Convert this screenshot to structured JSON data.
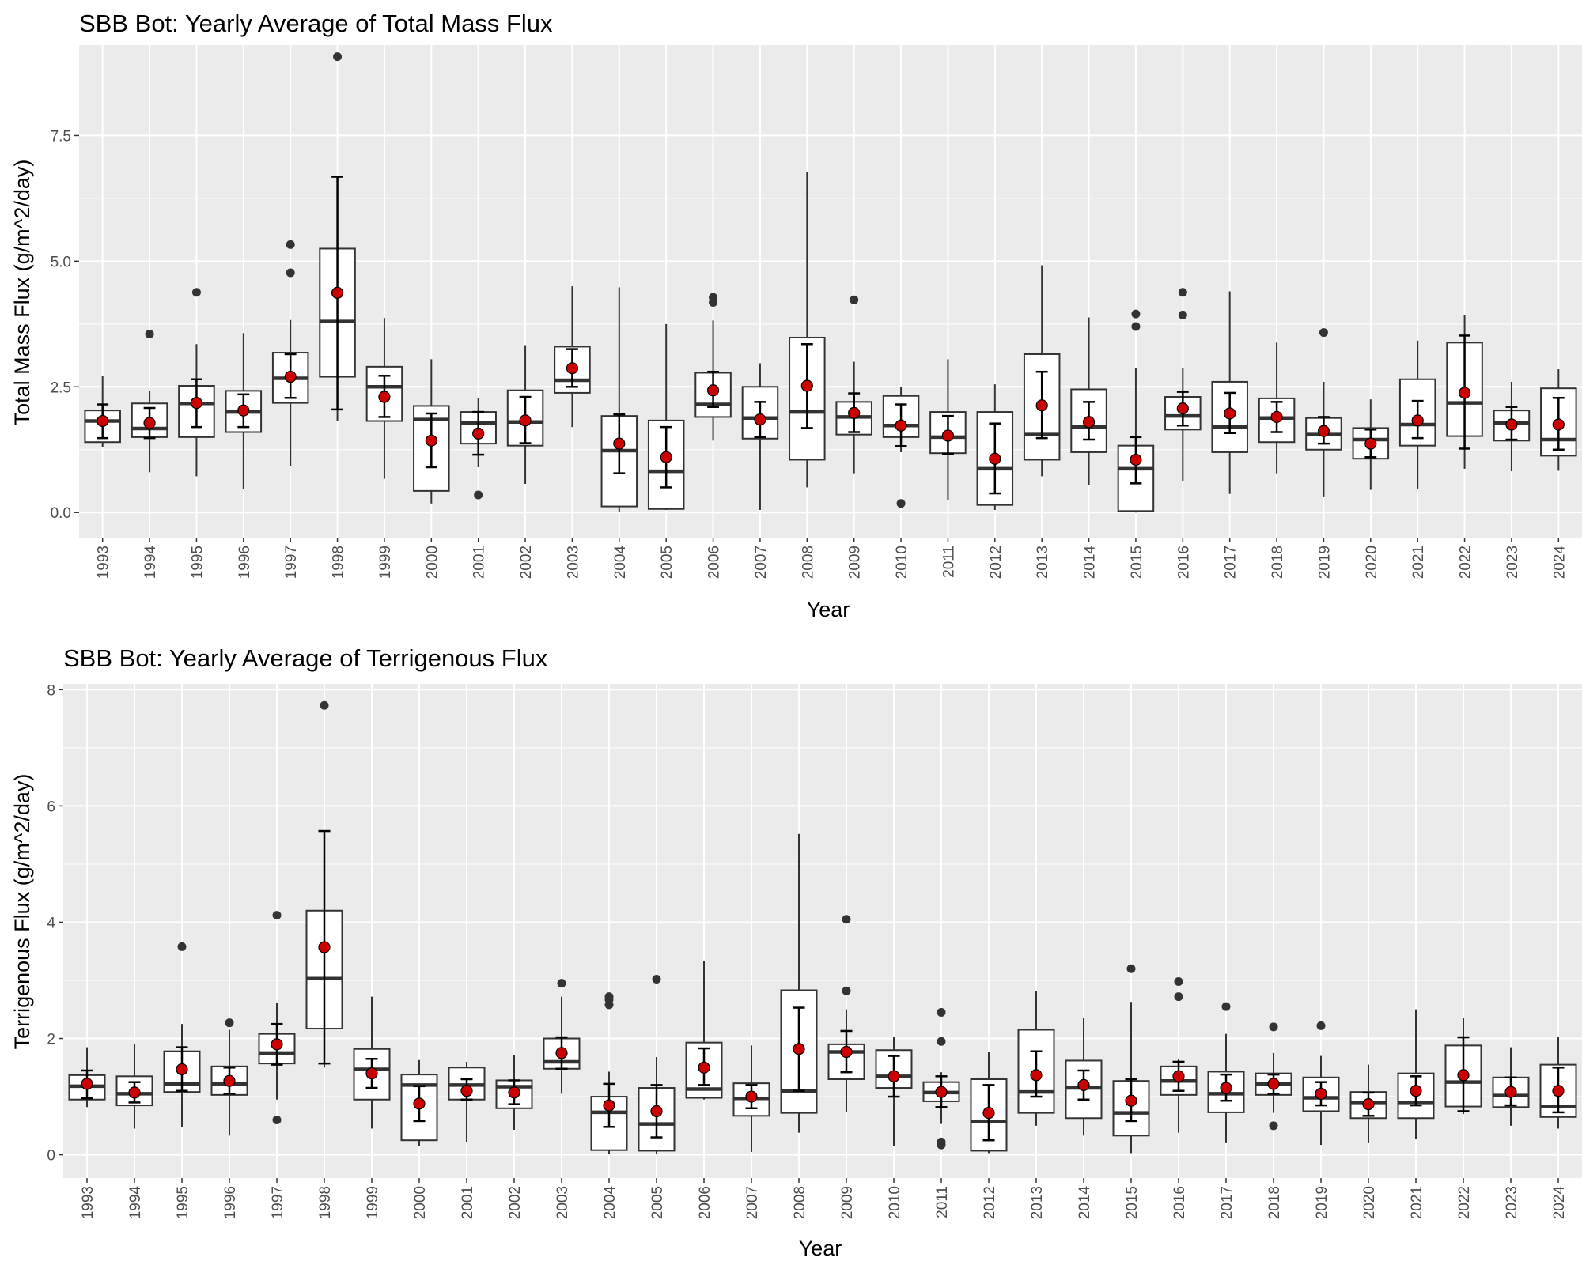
{
  "colors": {
    "panel_background": "#ebebeb",
    "grid_major": "#ffffff",
    "box_stroke": "#333333",
    "outlier": "#333333",
    "mean_point": "#cc0000",
    "errorbar": "#000000"
  },
  "chart_data": [
    {
      "type": "box",
      "title": "SBB Bot: Yearly Average of Total Mass Flux",
      "xlabel": "Year",
      "ylabel": "Total Mass Flux (g/m^2/day)",
      "ylim": [
        -0.5,
        9.3
      ],
      "yticks": [
        0.0,
        2.5,
        5.0,
        7.5
      ],
      "ytick_labels": [
        "0.0",
        "2.5",
        "5.0",
        "7.5"
      ],
      "grid": true,
      "categories": [
        "1993",
        "1994",
        "1995",
        "1996",
        "1997",
        "1998",
        "1999",
        "2000",
        "2001",
        "2002",
        "2003",
        "2004",
        "2005",
        "2006",
        "2007",
        "2008",
        "2009",
        "2010",
        "2011",
        "2012",
        "2013",
        "2014",
        "2015",
        "2016",
        "2017",
        "2018",
        "2019",
        "2020",
        "2021",
        "2022",
        "2023",
        "2024"
      ],
      "boxes": [
        {
          "q1": 1.4,
          "median": 1.82,
          "q3": 2.03,
          "wlo": 1.3,
          "whi": 2.72,
          "outliers": []
        },
        {
          "q1": 1.5,
          "median": 1.67,
          "q3": 2.17,
          "wlo": 0.8,
          "whi": 2.42,
          "outliers": [
            3.55
          ]
        },
        {
          "q1": 1.5,
          "median": 2.17,
          "q3": 2.52,
          "wlo": 0.72,
          "whi": 3.35,
          "outliers": [
            4.38
          ]
        },
        {
          "q1": 1.6,
          "median": 2.0,
          "q3": 2.42,
          "wlo": 0.47,
          "whi": 3.57,
          "outliers": []
        },
        {
          "q1": 2.18,
          "median": 2.67,
          "q3": 3.18,
          "wlo": 0.93,
          "whi": 3.83,
          "outliers": [
            4.77,
            5.33
          ]
        },
        {
          "q1": 2.7,
          "median": 3.8,
          "q3": 5.25,
          "wlo": 1.82,
          "whi": 6.68,
          "outliers": [
            9.07
          ]
        },
        {
          "q1": 1.82,
          "median": 2.5,
          "q3": 2.9,
          "wlo": 0.67,
          "whi": 3.87,
          "outliers": []
        },
        {
          "q1": 0.43,
          "median": 1.85,
          "q3": 2.12,
          "wlo": 0.18,
          "whi": 3.05,
          "outliers": []
        },
        {
          "q1": 1.37,
          "median": 1.78,
          "q3": 2.0,
          "wlo": 0.9,
          "whi": 2.28,
          "outliers": [
            0.35
          ]
        },
        {
          "q1": 1.33,
          "median": 1.8,
          "q3": 2.43,
          "wlo": 0.57,
          "whi": 3.33,
          "outliers": []
        },
        {
          "q1": 2.38,
          "median": 2.63,
          "q3": 3.3,
          "wlo": 1.7,
          "whi": 4.5,
          "outliers": []
        },
        {
          "q1": 0.12,
          "median": 1.23,
          "q3": 1.92,
          "wlo": 0.02,
          "whi": 4.48,
          "outliers": []
        },
        {
          "q1": 0.07,
          "median": 0.82,
          "q3": 1.83,
          "wlo": 0.05,
          "whi": 3.75,
          "outliers": []
        },
        {
          "q1": 1.9,
          "median": 2.15,
          "q3": 2.78,
          "wlo": 1.43,
          "whi": 3.82,
          "outliers": [
            4.18,
            4.28
          ]
        },
        {
          "q1": 1.47,
          "median": 1.88,
          "q3": 2.5,
          "wlo": 0.05,
          "whi": 2.97,
          "outliers": []
        },
        {
          "q1": 1.05,
          "median": 2.0,
          "q3": 3.48,
          "wlo": 0.5,
          "whi": 6.78,
          "outliers": []
        },
        {
          "q1": 1.55,
          "median": 1.9,
          "q3": 2.2,
          "wlo": 0.78,
          "whi": 3.0,
          "outliers": [
            4.23
          ]
        },
        {
          "q1": 1.5,
          "median": 1.73,
          "q3": 2.32,
          "wlo": 1.2,
          "whi": 2.5,
          "outliers": [
            0.18
          ]
        },
        {
          "q1": 1.18,
          "median": 1.5,
          "q3": 2.0,
          "wlo": 0.25,
          "whi": 3.05,
          "outliers": []
        },
        {
          "q1": 0.15,
          "median": 0.87,
          "q3": 2.0,
          "wlo": 0.05,
          "whi": 2.55,
          "outliers": []
        },
        {
          "q1": 1.05,
          "median": 1.55,
          "q3": 3.15,
          "wlo": 0.72,
          "whi": 4.92,
          "outliers": []
        },
        {
          "q1": 1.2,
          "median": 1.7,
          "q3": 2.45,
          "wlo": 0.55,
          "whi": 3.88,
          "outliers": []
        },
        {
          "q1": 0.03,
          "median": 0.87,
          "q3": 1.33,
          "wlo": 0.0,
          "whi": 2.88,
          "outliers": [
            3.7,
            3.95
          ]
        },
        {
          "q1": 1.65,
          "median": 1.92,
          "q3": 2.3,
          "wlo": 0.63,
          "whi": 2.88,
          "outliers": [
            3.93,
            4.38
          ]
        },
        {
          "q1": 1.2,
          "median": 1.7,
          "q3": 2.6,
          "wlo": 0.37,
          "whi": 4.4,
          "outliers": []
        },
        {
          "q1": 1.4,
          "median": 1.88,
          "q3": 2.27,
          "wlo": 0.78,
          "whi": 3.38,
          "outliers": []
        },
        {
          "q1": 1.25,
          "median": 1.55,
          "q3": 1.88,
          "wlo": 0.32,
          "whi": 2.6,
          "outliers": [
            3.58
          ]
        },
        {
          "q1": 1.07,
          "median": 1.45,
          "q3": 1.68,
          "wlo": 0.45,
          "whi": 2.25,
          "outliers": []
        },
        {
          "q1": 1.33,
          "median": 1.75,
          "q3": 2.65,
          "wlo": 0.47,
          "whi": 3.42,
          "outliers": []
        },
        {
          "q1": 1.52,
          "median": 2.18,
          "q3": 3.38,
          "wlo": 0.87,
          "whi": 3.92,
          "outliers": []
        },
        {
          "q1": 1.43,
          "median": 1.78,
          "q3": 2.03,
          "wlo": 0.82,
          "whi": 2.6,
          "outliers": []
        },
        {
          "q1": 1.13,
          "median": 1.45,
          "q3": 2.47,
          "wlo": 0.83,
          "whi": 2.85,
          "outliers": []
        }
      ],
      "means": [
        1.82,
        1.78,
        2.18,
        2.03,
        2.7,
        4.37,
        2.3,
        1.43,
        1.57,
        1.83,
        2.87,
        1.37,
        1.1,
        2.43,
        1.85,
        2.52,
        1.98,
        1.73,
        1.53,
        1.07,
        2.13,
        1.8,
        1.05,
        2.07,
        1.97,
        1.9,
        1.62,
        1.37,
        1.83,
        2.38,
        1.75,
        1.75
      ],
      "errorbars": [
        [
          1.48,
          2.15
        ],
        [
          1.48,
          2.08
        ],
        [
          1.7,
          2.65
        ],
        [
          1.7,
          2.35
        ],
        [
          2.28,
          3.15
        ],
        [
          2.05,
          6.68
        ],
        [
          1.9,
          2.72
        ],
        [
          0.9,
          1.97
        ],
        [
          1.15,
          2.0
        ],
        [
          1.38,
          2.3
        ],
        [
          2.5,
          3.25
        ],
        [
          0.78,
          1.95
        ],
        [
          0.5,
          1.7
        ],
        [
          2.1,
          2.8
        ],
        [
          1.5,
          2.2
        ],
        [
          1.68,
          3.35
        ],
        [
          1.6,
          2.37
        ],
        [
          1.32,
          2.15
        ],
        [
          1.17,
          1.92
        ],
        [
          0.38,
          1.77
        ],
        [
          1.48,
          2.8
        ],
        [
          1.45,
          2.2
        ],
        [
          0.58,
          1.5
        ],
        [
          1.73,
          2.4
        ],
        [
          1.58,
          2.38
        ],
        [
          1.6,
          2.2
        ],
        [
          1.37,
          1.9
        ],
        [
          1.1,
          1.65
        ],
        [
          1.48,
          2.22
        ],
        [
          1.27,
          3.52
        ],
        [
          1.45,
          2.1
        ],
        [
          1.25,
          2.28
        ]
      ]
    },
    {
      "type": "box",
      "title": "SBB Bot: Yearly Average of Terrigenous Flux",
      "xlabel": "Year",
      "ylabel": "Terrigenous Flux (g/m^2/day)",
      "ylim": [
        -0.4,
        8.1
      ],
      "yticks": [
        0,
        2,
        4,
        6,
        8
      ],
      "ytick_labels": [
        "0",
        "2",
        "4",
        "6",
        "8"
      ],
      "grid": true,
      "categories": [
        "1993",
        "1994",
        "1995",
        "1996",
        "1997",
        "1998",
        "1999",
        "2000",
        "2001",
        "2002",
        "2003",
        "2004",
        "2005",
        "2006",
        "2007",
        "2008",
        "2009",
        "2010",
        "2011",
        "2012",
        "2013",
        "2014",
        "2015",
        "2016",
        "2017",
        "2018",
        "2019",
        "2020",
        "2021",
        "2022",
        "2023",
        "2024"
      ],
      "boxes": [
        {
          "q1": 0.95,
          "median": 1.18,
          "q3": 1.37,
          "wlo": 0.82,
          "whi": 1.85,
          "outliers": []
        },
        {
          "q1": 0.85,
          "median": 1.05,
          "q3": 1.35,
          "wlo": 0.45,
          "whi": 1.9,
          "outliers": []
        },
        {
          "q1": 1.08,
          "median": 1.22,
          "q3": 1.78,
          "wlo": 0.47,
          "whi": 2.25,
          "outliers": [
            3.58
          ]
        },
        {
          "q1": 1.03,
          "median": 1.22,
          "q3": 1.52,
          "wlo": 0.33,
          "whi": 2.15,
          "outliers": [
            2.27
          ]
        },
        {
          "q1": 1.57,
          "median": 1.75,
          "q3": 2.08,
          "wlo": 0.95,
          "whi": 2.62,
          "outliers": [
            0.6,
            4.12
          ]
        },
        {
          "q1": 2.17,
          "median": 3.03,
          "q3": 4.2,
          "wlo": 1.5,
          "whi": 5.57,
          "outliers": [
            7.73
          ]
        },
        {
          "q1": 0.95,
          "median": 1.47,
          "q3": 1.82,
          "wlo": 0.45,
          "whi": 2.72,
          "outliers": []
        },
        {
          "q1": 0.25,
          "median": 1.2,
          "q3": 1.38,
          "wlo": 0.15,
          "whi": 1.63,
          "outliers": []
        },
        {
          "q1": 0.95,
          "median": 1.2,
          "q3": 1.5,
          "wlo": 0.22,
          "whi": 1.6,
          "outliers": []
        },
        {
          "q1": 0.8,
          "median": 1.17,
          "q3": 1.28,
          "wlo": 0.43,
          "whi": 1.72,
          "outliers": []
        },
        {
          "q1": 1.48,
          "median": 1.6,
          "q3": 2.0,
          "wlo": 1.05,
          "whi": 2.72,
          "outliers": [
            2.95
          ]
        },
        {
          "q1": 0.08,
          "median": 0.73,
          "q3": 1.0,
          "wlo": 0.02,
          "whi": 1.43,
          "outliers": [
            2.58,
            2.67,
            2.72
          ]
        },
        {
          "q1": 0.07,
          "median": 0.53,
          "q3": 1.15,
          "wlo": 0.02,
          "whi": 1.68,
          "outliers": [
            3.02
          ]
        },
        {
          "q1": 0.98,
          "median": 1.13,
          "q3": 1.93,
          "wlo": 0.95,
          "whi": 3.33,
          "outliers": []
        },
        {
          "q1": 0.67,
          "median": 0.97,
          "q3": 1.23,
          "wlo": 0.05,
          "whi": 1.88,
          "outliers": []
        },
        {
          "q1": 0.72,
          "median": 1.1,
          "q3": 2.83,
          "wlo": 0.38,
          "whi": 5.52,
          "outliers": []
        },
        {
          "q1": 1.3,
          "median": 1.77,
          "q3": 1.9,
          "wlo": 0.73,
          "whi": 2.5,
          "outliers": [
            2.82,
            4.05
          ]
        },
        {
          "q1": 1.15,
          "median": 1.35,
          "q3": 1.8,
          "wlo": 0.15,
          "whi": 2.02,
          "outliers": []
        },
        {
          "q1": 0.92,
          "median": 1.07,
          "q3": 1.25,
          "wlo": 0.53,
          "whi": 1.42,
          "outliers": [
            0.17,
            0.22,
            1.95,
            2.45
          ]
        },
        {
          "q1": 0.07,
          "median": 0.57,
          "q3": 1.3,
          "wlo": 0.03,
          "whi": 1.77,
          "outliers": []
        },
        {
          "q1": 0.72,
          "median": 1.08,
          "q3": 2.15,
          "wlo": 0.5,
          "whi": 2.82,
          "outliers": []
        },
        {
          "q1": 0.63,
          "median": 1.15,
          "q3": 1.62,
          "wlo": 0.33,
          "whi": 2.35,
          "outliers": []
        },
        {
          "q1": 0.33,
          "median": 0.72,
          "q3": 1.27,
          "wlo": 0.03,
          "whi": 2.63,
          "outliers": [
            3.2
          ]
        },
        {
          "q1": 1.03,
          "median": 1.27,
          "q3": 1.52,
          "wlo": 0.38,
          "whi": 1.65,
          "outliers": [
            2.72,
            2.98
          ]
        },
        {
          "q1": 0.73,
          "median": 1.05,
          "q3": 1.43,
          "wlo": 0.2,
          "whi": 2.08,
          "outliers": [
            2.55
          ]
        },
        {
          "q1": 1.03,
          "median": 1.22,
          "q3": 1.4,
          "wlo": 0.72,
          "whi": 1.75,
          "outliers": [
            0.5,
            2.2
          ]
        },
        {
          "q1": 0.75,
          "median": 0.98,
          "q3": 1.33,
          "wlo": 0.17,
          "whi": 1.7,
          "outliers": [
            2.22
          ]
        },
        {
          "q1": 0.63,
          "median": 0.9,
          "q3": 1.08,
          "wlo": 0.2,
          "whi": 1.55,
          "outliers": []
        },
        {
          "q1": 0.63,
          "median": 0.9,
          "q3": 1.4,
          "wlo": 0.27,
          "whi": 2.5,
          "outliers": []
        },
        {
          "q1": 0.83,
          "median": 1.25,
          "q3": 1.88,
          "wlo": 0.7,
          "whi": 2.35,
          "outliers": []
        },
        {
          "q1": 0.82,
          "median": 1.02,
          "q3": 1.33,
          "wlo": 0.5,
          "whi": 1.85,
          "outliers": []
        },
        {
          "q1": 0.65,
          "median": 0.83,
          "q3": 1.55,
          "wlo": 0.45,
          "whi": 2.02,
          "outliers": []
        }
      ],
      "means": [
        1.22,
        1.07,
        1.47,
        1.27,
        1.9,
        3.57,
        1.4,
        0.88,
        1.1,
        1.07,
        1.75,
        0.85,
        0.75,
        1.5,
        1.0,
        1.82,
        1.77,
        1.35,
        1.08,
        0.72,
        1.37,
        1.2,
        0.93,
        1.35,
        1.15,
        1.22,
        1.05,
        0.87,
        1.1,
        1.37,
        1.08,
        1.1
      ],
      "errorbars": [
        [
          0.97,
          1.45
        ],
        [
          0.9,
          1.25
        ],
        [
          1.1,
          1.85
        ],
        [
          1.05,
          1.5
        ],
        [
          1.55,
          2.25
        ],
        [
          1.57,
          5.57
        ],
        [
          1.15,
          1.65
        ],
        [
          0.58,
          1.18
        ],
        [
          0.95,
          1.3
        ],
        [
          0.87,
          1.28
        ],
        [
          1.48,
          2.02
        ],
        [
          0.48,
          1.22
        ],
        [
          0.3,
          1.2
        ],
        [
          1.2,
          1.83
        ],
        [
          0.8,
          1.2
        ],
        [
          1.1,
          2.53
        ],
        [
          1.42,
          2.13
        ],
        [
          1.0,
          1.7
        ],
        [
          0.82,
          1.35
        ],
        [
          0.25,
          1.2
        ],
        [
          1.0,
          1.78
        ],
        [
          0.95,
          1.45
        ],
        [
          0.58,
          1.3
        ],
        [
          1.1,
          1.6
        ],
        [
          0.93,
          1.38
        ],
        [
          1.05,
          1.38
        ],
        [
          0.85,
          1.25
        ],
        [
          0.67,
          1.07
        ],
        [
          0.85,
          1.35
        ],
        [
          0.75,
          2.02
        ],
        [
          0.85,
          1.33
        ],
        [
          0.73,
          1.5
        ]
      ]
    }
  ]
}
